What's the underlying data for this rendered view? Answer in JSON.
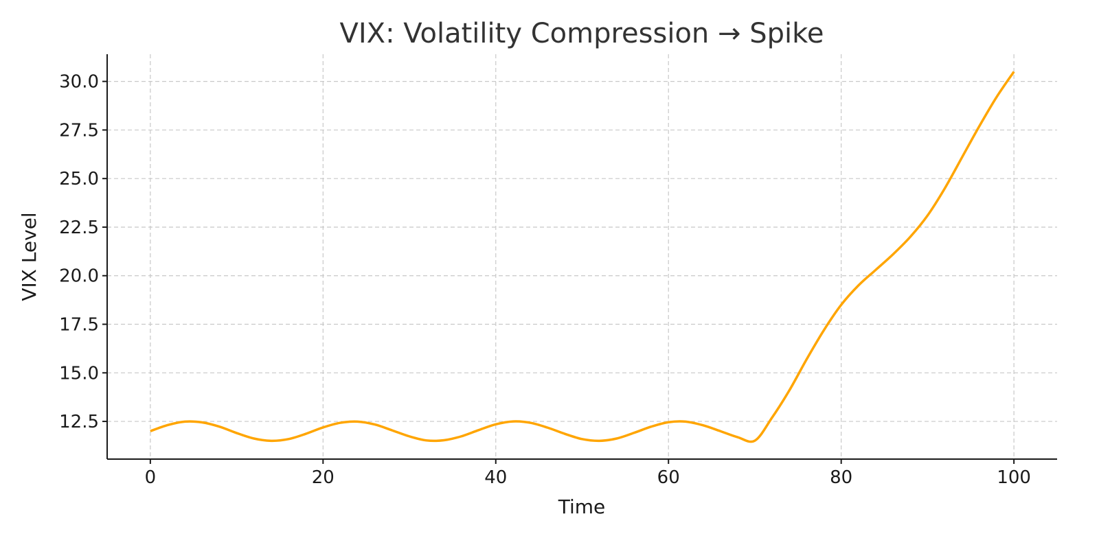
{
  "chart_data": {
    "type": "line",
    "title": "VIX: Volatility Compression → Spike",
    "xlabel": "Time",
    "ylabel": "VIX Level",
    "xlim": [
      -5,
      105
    ],
    "ylim": [
      10.56,
      31.4
    ],
    "xticks": [
      0,
      20,
      40,
      60,
      80,
      100
    ],
    "xtick_labels": [
      "0",
      "20",
      "40",
      "60",
      "80",
      "100"
    ],
    "yticks": [
      12.5,
      15.0,
      17.5,
      20.0,
      22.5,
      25.0,
      27.5,
      30.0
    ],
    "ytick_labels": [
      "12.5",
      "15.0",
      "17.5",
      "20.0",
      "22.5",
      "25.0",
      "27.5",
      "30.0"
    ],
    "grid": true,
    "line_color": "#FFA500",
    "series": [
      {
        "name": "VIX",
        "x": [
          0,
          2,
          4,
          6,
          8,
          10,
          12,
          14,
          16,
          18,
          20,
          22,
          24,
          26,
          28,
          30,
          32,
          34,
          36,
          38,
          40,
          42,
          44,
          46,
          48,
          50,
          52,
          54,
          56,
          58,
          60,
          62,
          64,
          66,
          68,
          70,
          72,
          74,
          76,
          78,
          80,
          82,
          84,
          86,
          88,
          90,
          92,
          94,
          96,
          98,
          100
        ],
        "values": [
          12.0,
          12.31,
          12.49,
          12.45,
          12.23,
          11.9,
          11.62,
          11.5,
          11.59,
          11.86,
          12.19,
          12.43,
          12.49,
          12.34,
          12.04,
          11.73,
          11.52,
          11.53,
          11.73,
          12.05,
          12.35,
          12.5,
          12.43,
          12.18,
          11.86,
          11.59,
          11.5,
          11.62,
          11.91,
          12.23,
          12.46,
          12.49,
          12.3,
          12.0,
          11.69,
          11.51,
          12.7,
          14.1,
          15.7,
          17.2,
          18.5,
          19.5,
          20.3,
          21.1,
          22.0,
          23.1,
          24.5,
          26.1,
          27.7,
          29.2,
          30.5
        ]
      }
    ]
  }
}
